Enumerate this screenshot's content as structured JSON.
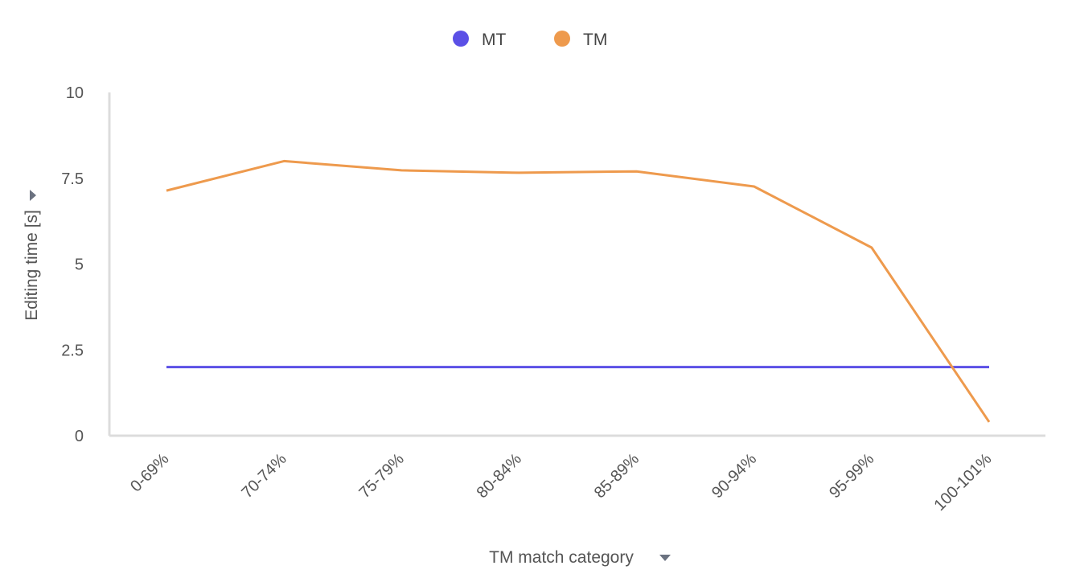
{
  "chart_data": {
    "type": "line",
    "categories": [
      "0-69%",
      "70-74%",
      "75-79%",
      "80-84%",
      "85-89%",
      "90-94%",
      "95-99%",
      "100-101%"
    ],
    "series": [
      {
        "name": "MT",
        "color": "#5b50e6",
        "values": [
          2.0,
          2.0,
          2.0,
          2.0,
          2.0,
          2.0,
          2.0,
          2.0
        ]
      },
      {
        "name": "TM",
        "color": "#ee9a4d",
        "values": [
          7.14,
          8.0,
          7.73,
          7.66,
          7.7,
          7.26,
          5.48,
          0.4
        ]
      }
    ],
    "xlabel": "TM match category",
    "ylabel": "Editing time [s]",
    "ylim": [
      0,
      10
    ],
    "yticks": [
      "0",
      "2.5",
      "5",
      "7.5",
      "10"
    ],
    "legend": "top-center",
    "grid": false
  }
}
